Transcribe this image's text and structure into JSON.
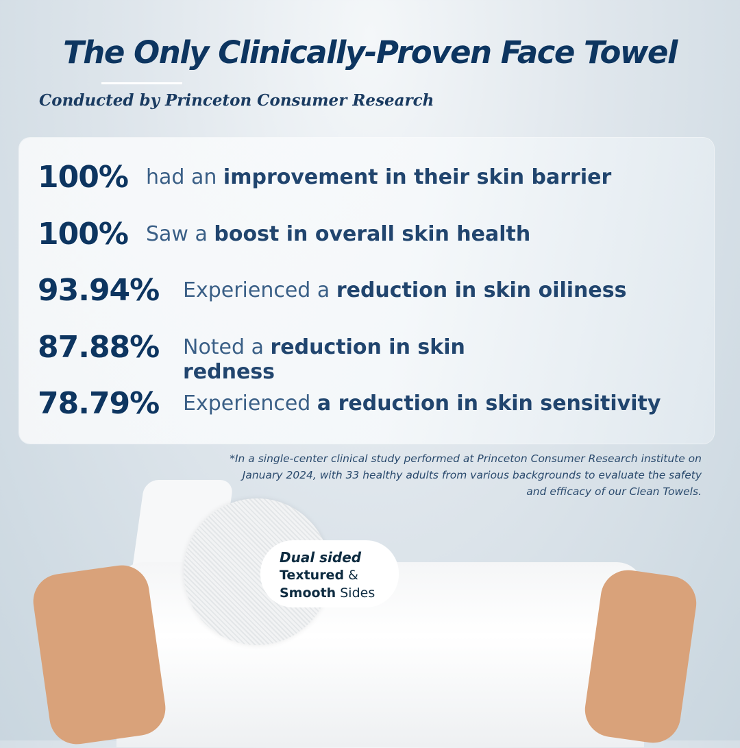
{
  "header": {
    "title": "The Only Clinically-Proven Face Towel",
    "subtitle": "Conducted by Princeton Consumer Research"
  },
  "stats": [
    {
      "percent": "100%",
      "pre": "had an ",
      "bold": "improvement in their skin barrier",
      "post": ""
    },
    {
      "percent": "100%",
      "pre": "Saw a ",
      "bold": "boost in overall skin health",
      "post": ""
    },
    {
      "percent": "93.94%",
      "pre": "Experienced a ",
      "bold": "reduction in skin oiliness",
      "post": ""
    },
    {
      "percent": "87.88%",
      "pre": "Noted a ",
      "bold": "reduction in skin redness",
      "post": ""
    },
    {
      "percent": "78.79%",
      "pre": "Experienced ",
      "bold": "a reduction in skin sensitivity",
      "post": ""
    }
  ],
  "footnote": "*In a single-center clinical study performed at Princeton Consumer Research institute on January 2024, with 33 healthy adults from various backgrounds to evaluate the safety and efficacy of our Clean Towels.",
  "callout": {
    "heading": "Dual sided",
    "line1_a": "Textured",
    "line1_b": " &",
    "line2_a": "Smooth",
    "line2_b": " Sides"
  },
  "colors": {
    "primary": "#0d3560",
    "secondary": "#3a5f86",
    "background": "#d5dfe6"
  }
}
